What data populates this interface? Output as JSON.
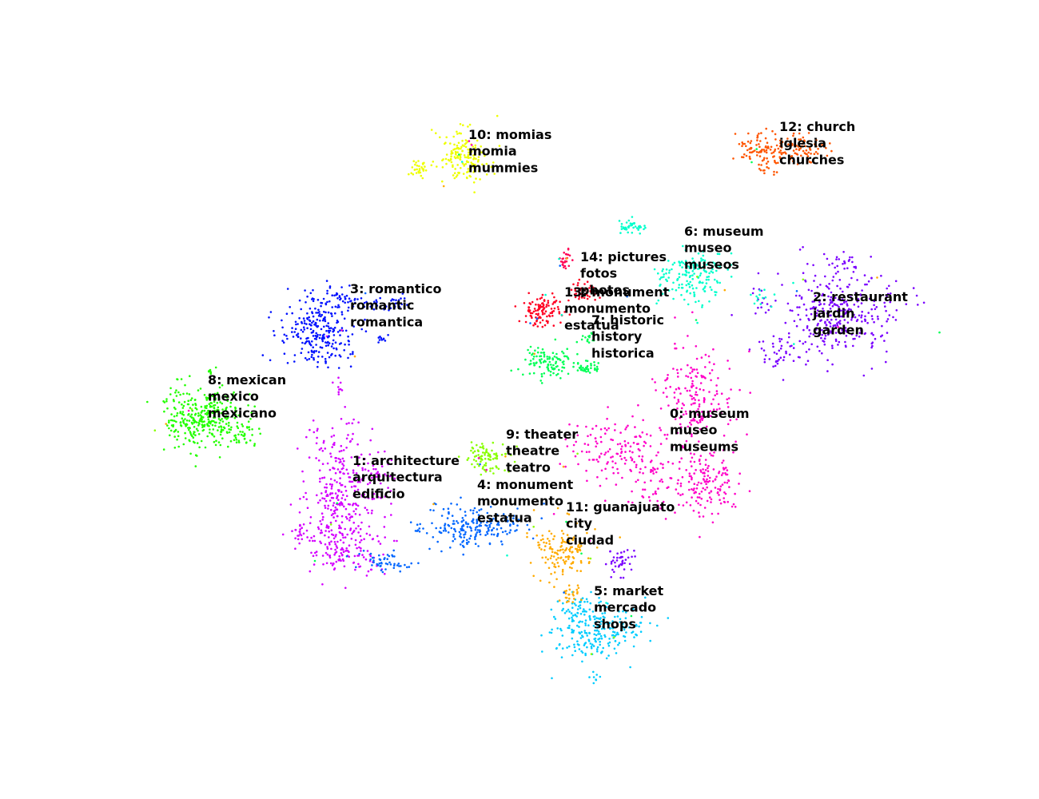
{
  "chart_data": {
    "type": "scatter",
    "title": "",
    "xlabel": "",
    "ylabel": "",
    "axes_visible": false,
    "grid": false,
    "legend": "none",
    "clusters": [
      {
        "id": 0,
        "words": [
          "0: museum",
          "museo",
          "museums"
        ],
        "color": "#ff00c8",
        "label_pos": [
          838,
          518
        ],
        "blobs": [
          [
            770,
            560,
            55,
            35,
            130
          ],
          [
            870,
            500,
            45,
            55,
            180
          ],
          [
            885,
            600,
            40,
            40,
            150
          ],
          [
            820,
            610,
            40,
            30,
            60
          ]
        ]
      },
      {
        "id": 1,
        "words": [
          "1: architecture",
          "arquitectura",
          "edificio"
        ],
        "color": "#d400ff",
        "label_pos": [
          441,
          577
        ],
        "blobs": [
          [
            420,
            620,
            35,
            90,
            300
          ],
          [
            470,
            600,
            25,
            40,
            60
          ],
          [
            440,
            690,
            45,
            25,
            90
          ],
          [
            374,
            665,
            12,
            18,
            25
          ],
          [
            425,
            490,
            6,
            10,
            8
          ]
        ]
      },
      {
        "id": 2,
        "words": [
          "2: restaurant",
          "jardin",
          "garden"
        ],
        "color": "#7a00ff",
        "label_pos": [
          1017,
          372
        ],
        "blobs": [
          [
            1050,
            390,
            65,
            50,
            320
          ],
          [
            975,
            440,
            30,
            25,
            40
          ],
          [
            1055,
            330,
            15,
            12,
            20
          ],
          [
            948,
            375,
            10,
            12,
            10
          ]
        ]
      },
      {
        "id": 3,
        "words": [
          "3: romantico",
          "romantic",
          "romantica"
        ],
        "color": "#0011ff",
        "label_pos": [
          438,
          362
        ],
        "blobs": [
          [
            395,
            420,
            40,
            35,
            220
          ],
          [
            415,
            378,
            30,
            20,
            70
          ],
          [
            485,
            380,
            30,
            12,
            35
          ],
          [
            478,
            425,
            10,
            6,
            10
          ]
        ]
      },
      {
        "id": 4,
        "words": [
          "4: monument",
          "monumento",
          "estatua"
        ],
        "color": "#0066ff",
        "label_pos": [
          597,
          607
        ],
        "blobs": [
          [
            595,
            660,
            55,
            25,
            200
          ],
          [
            480,
            705,
            30,
            12,
            50
          ],
          [
            520,
            662,
            10,
            5,
            8
          ]
        ]
      },
      {
        "id": 5,
        "words": [
          "5: market",
          "mercado",
          "shops"
        ],
        "color": "#00ccff",
        "label_pos": [
          743,
          740
        ],
        "blobs": [
          [
            745,
            790,
            50,
            30,
            220
          ],
          [
            720,
            760,
            20,
            15,
            40
          ],
          [
            745,
            848,
            6,
            6,
            8
          ]
        ]
      },
      {
        "id": 6,
        "words": [
          "6: museum",
          "museo",
          "museos"
        ],
        "color": "#00ffcc",
        "label_pos": [
          856,
          290
        ],
        "blobs": [
          [
            865,
            345,
            38,
            30,
            170
          ],
          [
            790,
            285,
            18,
            8,
            40
          ],
          [
            952,
            370,
            12,
            10,
            12
          ]
        ]
      },
      {
        "id": 7,
        "words": [
          "7: historic",
          "history",
          "historica"
        ],
        "color": "#00ff55",
        "label_pos": [
          740,
          401
        ],
        "blobs": [
          [
            685,
            455,
            28,
            18,
            110
          ],
          [
            735,
            460,
            15,
            8,
            35
          ],
          [
            735,
            425,
            10,
            10,
            15
          ]
        ]
      },
      {
        "id": 8,
        "words": [
          "8: mexican",
          "mexico",
          "mexicano"
        ],
        "color": "#22ff00",
        "label_pos": [
          260,
          476
        ],
        "blobs": [
          [
            255,
            520,
            45,
            35,
            320
          ],
          [
            300,
            545,
            25,
            12,
            40
          ],
          [
            262,
            466,
            4,
            4,
            6
          ]
        ]
      },
      {
        "id": 9,
        "words": [
          "9: theater",
          "theatre",
          "teatro"
        ],
        "color": "#88ff00",
        "label_pos": [
          633,
          544
        ],
        "blobs": [
          [
            608,
            573,
            22,
            15,
            90
          ]
        ]
      },
      {
        "id": 10,
        "words": [
          "10: momias",
          "momia",
          "mummies"
        ],
        "color": "#eeff00",
        "label_pos": [
          586,
          169
        ],
        "blobs": [
          [
            580,
            195,
            30,
            30,
            160
          ],
          [
            522,
            210,
            12,
            10,
            30
          ]
        ]
      },
      {
        "id": 11,
        "words": [
          "11: guanajuato",
          "city",
          "ciudad"
        ],
        "color": "#ffaa00",
        "label_pos": [
          708,
          635
        ],
        "blobs": [
          [
            705,
            690,
            30,
            35,
            150
          ],
          [
            715,
            745,
            12,
            10,
            20
          ]
        ]
      },
      {
        "id": 12,
        "words": [
          "12: church",
          "iglesia",
          "churches"
        ],
        "color": "#ff5500",
        "label_pos": [
          975,
          159
        ],
        "blobs": [
          [
            950,
            185,
            28,
            18,
            90
          ],
          [
            1005,
            185,
            25,
            15,
            70
          ],
          [
            960,
            210,
            15,
            8,
            15
          ]
        ]
      },
      {
        "id": 13,
        "words": [
          "13: monument",
          "monumento",
          "estatua"
        ],
        "color": "#ff0022",
        "label_pos": [
          706,
          366
        ],
        "blobs": [
          [
            680,
            390,
            25,
            18,
            110
          ],
          [
            730,
            365,
            15,
            10,
            40
          ]
        ]
      },
      {
        "id": 14,
        "words": [
          "14: pictures",
          "fotos",
          "photos"
        ],
        "color": "#ff0055",
        "label_pos": [
          726,
          322
        ],
        "blobs": [
          [
            708,
            325,
            8,
            10,
            25
          ]
        ]
      },
      {
        "id": -1,
        "words": [],
        "color": "#7a00ff",
        "label_pos": null,
        "blobs": [
          [
            776,
            705,
            15,
            18,
            40
          ]
        ]
      }
    ]
  }
}
